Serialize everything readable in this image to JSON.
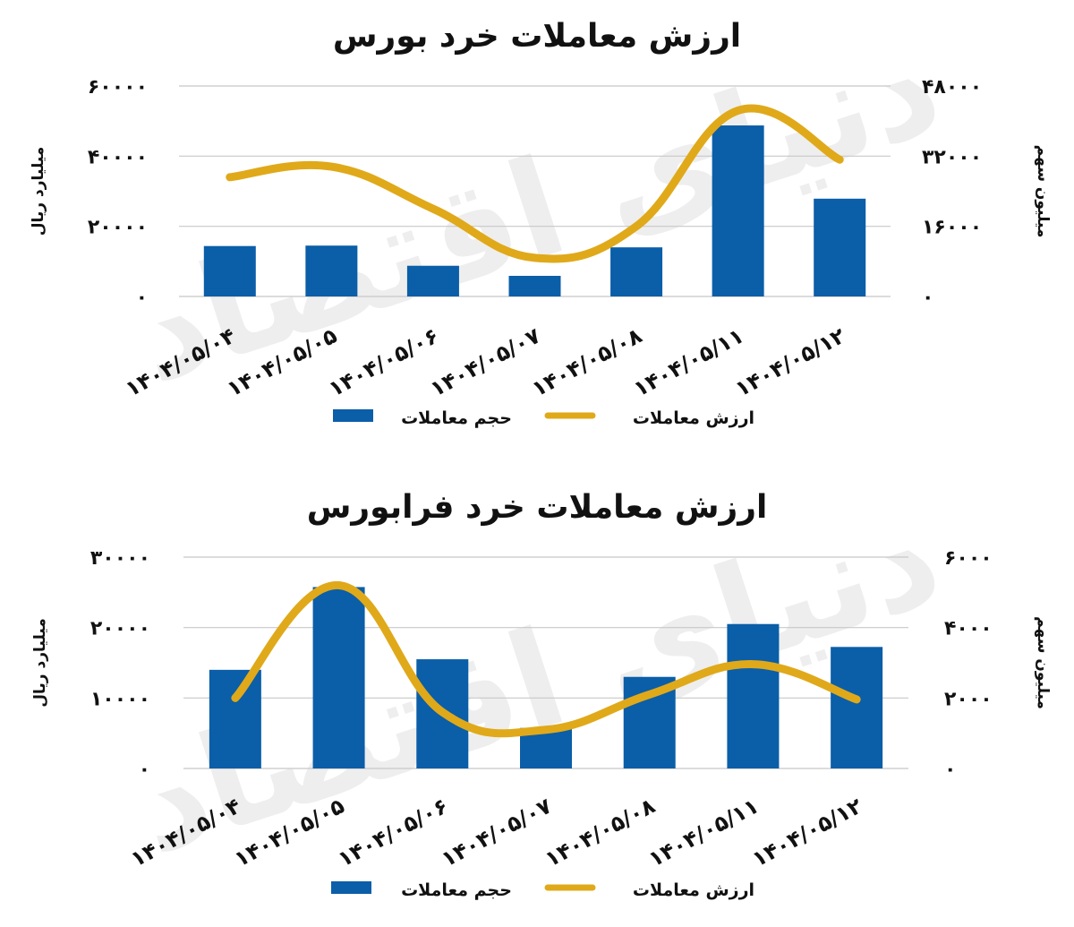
{
  "colors": {
    "bar": "#0b5ea8",
    "line": "#e0a91a",
    "grid": "#c8c8c8"
  },
  "chart_data": [
    {
      "type": "bar+line",
      "title": "ارزش معاملات خرد بورس",
      "categories": [
        "1404/05/04",
        "1404/05/05",
        "1404/05/06",
        "1404/05/07",
        "1404/05/08",
        "1404/05/11",
        "1404/05/12"
      ],
      "categories_display": [
        "۱۴۰۴/۰۵/۰۴",
        "۱۴۰۴/۰۵/۰۵",
        "۱۴۰۴/۰۵/۰۶",
        "۱۴۰۴/۰۵/۰۷",
        "۱۴۰۴/۰۵/۰۸",
        "۱۴۰۴/۰۵/۱۱",
        "۱۴۰۴/۰۵/۱۲"
      ],
      "ylabel_left": "میلیارد ریال",
      "ylabel_right": "میلیون سهم",
      "ylim_left": [
        0,
        60000
      ],
      "ylim_right": [
        0,
        48000
      ],
      "yticks_left": [
        0,
        20000,
        40000,
        60000
      ],
      "yticks_left_display": [
        "۰",
        "۲۰۰۰۰",
        "۴۰۰۰۰",
        "۶۰۰۰۰"
      ],
      "yticks_right": [
        0,
        16000,
        32000,
        48000
      ],
      "yticks_right_display": [
        "۰",
        "۱۶۰۰۰",
        "۳۲۰۰۰",
        "۴۸۰۰۰"
      ],
      "series": [
        {
          "name": "حجم معاملات",
          "type": "bar",
          "axis": "right",
          "values": [
            11500,
            11600,
            7000,
            4700,
            11200,
            39000,
            22300
          ]
        },
        {
          "name": "ارزش معاملات",
          "type": "line",
          "axis": "left",
          "values": [
            34000,
            37000,
            25000,
            11000,
            20000,
            53000,
            39000
          ]
        }
      ],
      "grid": true,
      "legend": "bottom"
    },
    {
      "type": "bar+line",
      "title": "ارزش معاملات خرد فرابورس",
      "categories": [
        "1404/05/04",
        "1404/05/05",
        "1404/05/06",
        "1404/05/07",
        "1404/05/08",
        "1404/05/11",
        "1404/05/12"
      ],
      "categories_display": [
        "۱۴۰۴/۰۵/۰۴",
        "۱۴۰۴/۰۵/۰۵",
        "۱۴۰۴/۰۵/۰۶",
        "۱۴۰۴/۰۵/۰۷",
        "۱۴۰۴/۰۵/۰۸",
        "۱۴۰۴/۰۵/۱۱",
        "۱۴۰۴/۰۵/۱۲"
      ],
      "ylabel_left": "میلیارد ریال",
      "ylabel_right": "میلیون سهم",
      "ylim_left": [
        0,
        30000
      ],
      "ylim_right": [
        0,
        6000
      ],
      "yticks_left": [
        0,
        10000,
        20000,
        30000
      ],
      "yticks_left_display": [
        "۰",
        "۱۰۰۰۰",
        "۲۰۰۰۰",
        "۳۰۰۰۰"
      ],
      "yticks_right": [
        0,
        2000,
        4000,
        6000
      ],
      "yticks_right_display": [
        "۰",
        "۲۰۰۰",
        "۴۰۰۰",
        "۶۰۰۰"
      ],
      "series": [
        {
          "name": "حجم معاملات",
          "type": "bar",
          "axis": "right",
          "values": [
            2800,
            5150,
            3100,
            1150,
            2600,
            4100,
            3450
          ]
        },
        {
          "name": "ارزش معاملات",
          "type": "line",
          "axis": "left",
          "values": [
            10000,
            26000,
            8000,
            5500,
            10500,
            14800,
            9800
          ]
        }
      ],
      "grid": true,
      "legend": "bottom"
    }
  ],
  "watermark": "دنیای اقتصاد"
}
